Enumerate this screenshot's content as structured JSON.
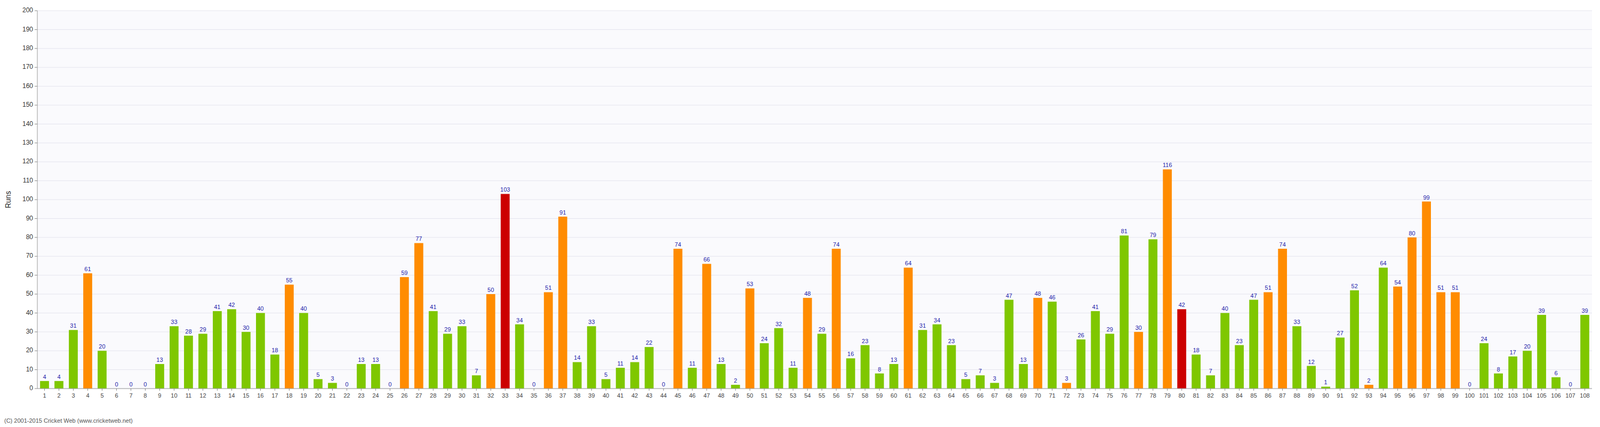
{
  "chart_data": {
    "type": "bar",
    "y_label": "Runs",
    "annotations": [
      "(C) 2001-2015 Cricket Web (www.cricketweb.net)"
    ],
    "categories": [
      "1",
      "2",
      "3",
      "4",
      "5",
      "6",
      "7",
      "8",
      "9",
      "10",
      "11",
      "12",
      "13",
      "14",
      "15",
      "16",
      "17",
      "18",
      "19",
      "20",
      "21",
      "22",
      "23",
      "24",
      "25",
      "26",
      "27",
      "28",
      "29",
      "30",
      "31",
      "32",
      "33",
      "34",
      "35",
      "36",
      "37",
      "38",
      "39",
      "40",
      "41",
      "42",
      "43",
      "44",
      "45",
      "46",
      "47",
      "48",
      "49",
      "50",
      "51",
      "52",
      "53",
      "54",
      "55",
      "56",
      "57",
      "58",
      "59",
      "60",
      "61",
      "62",
      "63",
      "64",
      "65",
      "66",
      "67",
      "68",
      "69",
      "70",
      "71",
      "72",
      "73",
      "74",
      "75",
      "76",
      "77",
      "78",
      "79",
      "80",
      "81",
      "82",
      "83",
      "84",
      "85",
      "86",
      "87",
      "88",
      "89",
      "90",
      "91",
      "92",
      "93",
      "94",
      "95",
      "96",
      "97",
      "98",
      "99",
      "100",
      "101",
      "102",
      "103",
      "104",
      "105",
      "106",
      "107",
      "108"
    ],
    "values": [
      4,
      4,
      31,
      61,
      20,
      0,
      0,
      0,
      13,
      33,
      28,
      29,
      41,
      42,
      30,
      40,
      18,
      55,
      40,
      5,
      3,
      0,
      13,
      13,
      0,
      59,
      77,
      41,
      29,
      33,
      7,
      50,
      103,
      34,
      0,
      51,
      91,
      14,
      33,
      5,
      11,
      14,
      22,
      0,
      74,
      11,
      66,
      13,
      2,
      53,
      24,
      32,
      11,
      48,
      29,
      74,
      16,
      23,
      8,
      13,
      64,
      31,
      34,
      23,
      5,
      7,
      3,
      47,
      13,
      48,
      46,
      3,
      26,
      41,
      29,
      81,
      30,
      79,
      116,
      42,
      18,
      7,
      40,
      23,
      47,
      51,
      74,
      33,
      12,
      1,
      27,
      52,
      2,
      64,
      54,
      80,
      99,
      51,
      51,
      0,
      24,
      8,
      17,
      20,
      39,
      6,
      0,
      39
    ],
    "colors": [
      "#7fc700",
      "#7fc700",
      "#7fc700",
      "#ff8c00",
      "#7fc700",
      "#7fc700",
      "#7fc700",
      "#7fc700",
      "#7fc700",
      "#7fc700",
      "#7fc700",
      "#7fc700",
      "#7fc700",
      "#7fc700",
      "#7fc700",
      "#7fc700",
      "#7fc700",
      "#ff8c00",
      "#7fc700",
      "#7fc700",
      "#7fc700",
      "#7fc700",
      "#7fc700",
      "#7fc700",
      "#7fc700",
      "#ff8c00",
      "#ff8c00",
      "#7fc700",
      "#7fc700",
      "#7fc700",
      "#7fc700",
      "#ff8c00",
      "#cc0000",
      "#7fc700",
      "#7fc700",
      "#ff8c00",
      "#ff8c00",
      "#7fc700",
      "#7fc700",
      "#7fc700",
      "#7fc700",
      "#7fc700",
      "#7fc700",
      "#7fc700",
      "#ff8c00",
      "#7fc700",
      "#ff8c00",
      "#7fc700",
      "#7fc700",
      "#ff8c00",
      "#7fc700",
      "#7fc700",
      "#7fc700",
      "#ff8c00",
      "#7fc700",
      "#ff8c00",
      "#7fc700",
      "#7fc700",
      "#7fc700",
      "#7fc700",
      "#ff8c00",
      "#7fc700",
      "#7fc700",
      "#7fc700",
      "#7fc700",
      "#7fc700",
      "#7fc700",
      "#7fc700",
      "#7fc700",
      "#ff8c00",
      "#7fc700",
      "#ff8c00",
      "#7fc700",
      "#7fc700",
      "#7fc700",
      "#7fc700",
      "#ff8c00",
      "#7fc700",
      "#ff8c00",
      "#cc0000",
      "#7fc700",
      "#7fc700",
      "#7fc700",
      "#7fc700",
      "#7fc700",
      "#ff8c00",
      "#ff8c00",
      "#7fc700",
      "#7fc700",
      "#7fc700",
      "#7fc700",
      "#7fc700",
      "#ff8c00",
      "#7fc700",
      "#ff8c00",
      "#ff8c00",
      "#ff8c00",
      "#ff8c00",
      "#ff8c00",
      "#ff8c00",
      "#7fc700",
      "#7fc700",
      "#7fc700",
      "#7fc700",
      "#7fc700",
      "#7fc700",
      "#7fc700",
      "#7fc700"
    ],
    "ylim": [
      0,
      200
    ],
    "yticks": [
      0,
      10,
      20,
      30,
      40,
      50,
      60,
      70,
      80,
      90,
      100,
      110,
      120,
      130,
      140,
      150,
      160,
      170,
      180,
      190,
      200
    ],
    "grid": true,
    "data_labels": true
  }
}
